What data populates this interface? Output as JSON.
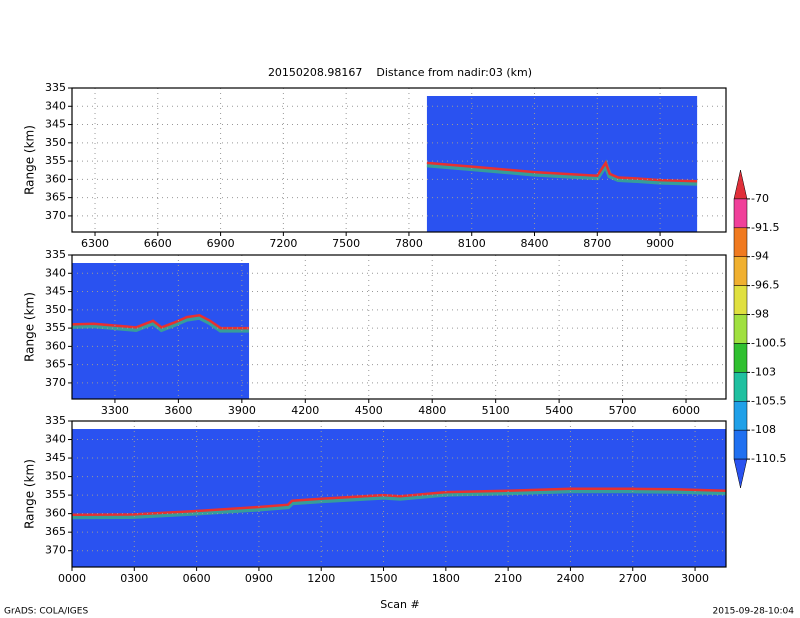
{
  "title": "20150208.98167    Distance from nadir:03 (km)",
  "xlabel": "Scan #",
  "footer_left": "GrADS: COLA/IGES",
  "footer_right": "2015-09-28-10:04",
  "background_color": "#2a52f0",
  "colorbar": {
    "levels": [
      -70,
      -91.5,
      -94,
      -96.5,
      -98,
      -100.5,
      -103,
      -105.5,
      -108,
      -110.5
    ],
    "colors": [
      "#e0303a",
      "#f0409a",
      "#f07a20",
      "#f0b030",
      "#e0e040",
      "#a0e040",
      "#30c030",
      "#20c0a0",
      "#20a0e8",
      "#2070f0",
      "#2a52f0"
    ]
  },
  "chart_data": [
    {
      "type": "line",
      "ylabel": "Range (km)",
      "grid": true,
      "y_inverted": true,
      "xlim": [
        6190,
        9315
      ],
      "ylim": [
        335,
        374.4
      ],
      "xticks": [
        6300,
        6600,
        6900,
        7200,
        7500,
        7800,
        8100,
        8400,
        8700,
        9000
      ],
      "yticks": [
        335,
        340,
        345,
        350,
        355,
        360,
        365,
        370
      ],
      "series": [
        {
          "color": "#e83030",
          "x": [
            7886,
            8100,
            8400,
            8700,
            8740,
            8760,
            8800,
            8900,
            9000,
            9177
          ],
          "values": [
            355.5,
            356.5,
            358,
            359,
            355.5,
            358.5,
            359.5,
            359.8,
            360.2,
            360.5
          ]
        }
      ]
    },
    {
      "type": "line",
      "ylabel": "Range (km)",
      "grid": true,
      "y_inverted": true,
      "xlim": [
        3097,
        6189
      ],
      "ylim": [
        335,
        374.4
      ],
      "xticks": [
        3300,
        3600,
        3900,
        4200,
        4500,
        4800,
        5100,
        5400,
        5700,
        6000
      ],
      "yticks": [
        335,
        340,
        345,
        350,
        355,
        360,
        365,
        370
      ],
      "series": [
        {
          "color": "#e83030",
          "x": [
            3097,
            3200,
            3400,
            3480,
            3520,
            3580,
            3640,
            3700,
            3750,
            3800,
            3934
          ],
          "values": [
            354,
            353.8,
            354.8,
            353,
            354.8,
            353.5,
            352,
            351.5,
            353,
            355,
            355
          ]
        }
      ]
    },
    {
      "type": "line",
      "ylabel": "Range (km)",
      "grid": true,
      "y_inverted": true,
      "xlim": [
        0,
        3149
      ],
      "ylim": [
        335,
        374.4
      ],
      "xticks": [
        {
          "value": 0,
          "label": "0000"
        },
        {
          "value": 300,
          "label": "0300"
        },
        {
          "value": 600,
          "label": "0600"
        },
        {
          "value": 900,
          "label": "0900"
        },
        1200,
        1500,
        1800,
        2100,
        2400,
        2700,
        3000
      ],
      "yticks": [
        335,
        340,
        345,
        350,
        355,
        360,
        365,
        370
      ],
      "series": [
        {
          "color": "#e83030",
          "x": [
            0,
            300,
            600,
            900,
            1040,
            1060,
            1200,
            1500,
            1580,
            1800,
            2100,
            2400,
            2700,
            2900,
            3149
          ],
          "values": [
            360.3,
            360.2,
            359.3,
            358.2,
            357.6,
            356.5,
            356,
            355,
            355.3,
            354.2,
            353.8,
            353.3,
            353.3,
            353.4,
            353.8
          ]
        }
      ]
    }
  ]
}
